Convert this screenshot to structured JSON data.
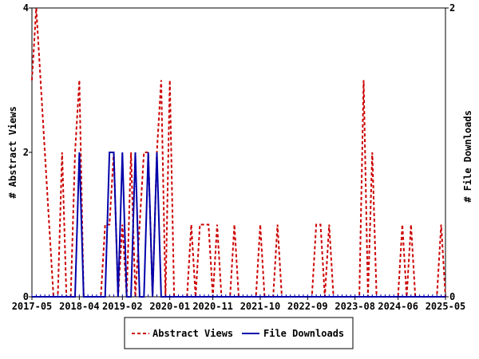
{
  "chart_data": {
    "type": "line",
    "ylabel_left": "# Abstract Views",
    "ylabel_right": "# File Downloads",
    "ylim_left": [
      0,
      4
    ],
    "ylim_right": [
      0,
      2
    ],
    "yticks_left": [
      "0",
      "2",
      "4"
    ],
    "yticks_right": [
      "0",
      "2"
    ],
    "x_range": [
      "2017-05",
      "2025-05"
    ],
    "xticks": [
      "2017-05",
      "2018-04",
      "2019-02",
      "2020-01",
      "2020-11",
      "2021-10",
      "2022-09",
      "2023-08",
      "2024-06",
      "2025-05"
    ],
    "legend_position": "bottom",
    "grid": false,
    "series": [
      {
        "name": "Abstract Views",
        "axis": "left",
        "color": "#cc0000",
        "style": "dashed",
        "points": [
          [
            "2017-05",
            3
          ],
          [
            "2017-06",
            4
          ],
          [
            "2017-07",
            3
          ],
          [
            "2017-08",
            2
          ],
          [
            "2017-09",
            1
          ],
          [
            "2017-10",
            0
          ],
          [
            "2017-11",
            0
          ],
          [
            "2017-12",
            2
          ],
          [
            "2018-01",
            0
          ],
          [
            "2018-02",
            0
          ],
          [
            "2018-03",
            2
          ],
          [
            "2018-04",
            3
          ],
          [
            "2018-05",
            0
          ],
          [
            "2018-06",
            0
          ],
          [
            "2018-07",
            0
          ],
          [
            "2018-08",
            0
          ],
          [
            "2018-09",
            0
          ],
          [
            "2018-10",
            1
          ],
          [
            "2018-11",
            1
          ],
          [
            "2018-12",
            2
          ],
          [
            "2019-01",
            0
          ],
          [
            "2019-02",
            1
          ],
          [
            "2019-03",
            0
          ],
          [
            "2019-04",
            2
          ],
          [
            "2019-05",
            0
          ],
          [
            "2019-06",
            1
          ],
          [
            "2019-07",
            2
          ],
          [
            "2019-08",
            2
          ],
          [
            "2019-09",
            0
          ],
          [
            "2019-10",
            2
          ],
          [
            "2019-11",
            3
          ],
          [
            "2019-12",
            0
          ],
          [
            "2020-01",
            3
          ],
          [
            "2020-02",
            0
          ],
          [
            "2020-03",
            0
          ],
          [
            "2020-04",
            0
          ],
          [
            "2020-05",
            0
          ],
          [
            "2020-06",
            1
          ],
          [
            "2020-07",
            0
          ],
          [
            "2020-08",
            1
          ],
          [
            "2020-09",
            1
          ],
          [
            "2020-10",
            1
          ],
          [
            "2020-11",
            0
          ],
          [
            "2020-12",
            1
          ],
          [
            "2021-01",
            0
          ],
          [
            "2021-02",
            0
          ],
          [
            "2021-03",
            0
          ],
          [
            "2021-04",
            1
          ],
          [
            "2021-05",
            0
          ],
          [
            "2021-06",
            0
          ],
          [
            "2021-07",
            0
          ],
          [
            "2021-08",
            0
          ],
          [
            "2021-09",
            0
          ],
          [
            "2021-10",
            1
          ],
          [
            "2021-11",
            0
          ],
          [
            "2021-12",
            0
          ],
          [
            "2022-01",
            0
          ],
          [
            "2022-02",
            1
          ],
          [
            "2022-03",
            0
          ],
          [
            "2022-04",
            0
          ],
          [
            "2022-05",
            0
          ],
          [
            "2022-06",
            0
          ],
          [
            "2022-07",
            0
          ],
          [
            "2022-08",
            0
          ],
          [
            "2022-09",
            0
          ],
          [
            "2022-10",
            0
          ],
          [
            "2022-11",
            1
          ],
          [
            "2022-12",
            1
          ],
          [
            "2023-01",
            0
          ],
          [
            "2023-02",
            1
          ],
          [
            "2023-03",
            0
          ],
          [
            "2023-04",
            0
          ],
          [
            "2023-05",
            0
          ],
          [
            "2023-06",
            0
          ],
          [
            "2023-07",
            0
          ],
          [
            "2023-08",
            0
          ],
          [
            "2023-09",
            0
          ],
          [
            "2023-10",
            3
          ],
          [
            "2023-11",
            0
          ],
          [
            "2023-12",
            2
          ],
          [
            "2024-01",
            0
          ],
          [
            "2024-02",
            0
          ],
          [
            "2024-03",
            0
          ],
          [
            "2024-04",
            0
          ],
          [
            "2024-05",
            0
          ],
          [
            "2024-06",
            0
          ],
          [
            "2024-07",
            1
          ],
          [
            "2024-08",
            0
          ],
          [
            "2024-09",
            1
          ],
          [
            "2024-10",
            0
          ],
          [
            "2024-11",
            0
          ],
          [
            "2024-12",
            0
          ],
          [
            "2025-01",
            0
          ],
          [
            "2025-02",
            0
          ],
          [
            "2025-03",
            0
          ],
          [
            "2025-04",
            1
          ],
          [
            "2025-05",
            0
          ]
        ]
      },
      {
        "name": "File Downloads",
        "axis": "right",
        "color": "#0000aa",
        "style": "solid",
        "points": [
          [
            "2017-05",
            0
          ],
          [
            "2017-06",
            0
          ],
          [
            "2017-07",
            0
          ],
          [
            "2017-08",
            0
          ],
          [
            "2017-09",
            0
          ],
          [
            "2017-10",
            0
          ],
          [
            "2017-11",
            0
          ],
          [
            "2017-12",
            0
          ],
          [
            "2018-01",
            0
          ],
          [
            "2018-02",
            0
          ],
          [
            "2018-03",
            0
          ],
          [
            "2018-04",
            1
          ],
          [
            "2018-05",
            0
          ],
          [
            "2018-06",
            0
          ],
          [
            "2018-07",
            0
          ],
          [
            "2018-08",
            0
          ],
          [
            "2018-09",
            0
          ],
          [
            "2018-10",
            0
          ],
          [
            "2018-11",
            1
          ],
          [
            "2018-12",
            1
          ],
          [
            "2019-01",
            0
          ],
          [
            "2019-02",
            1
          ],
          [
            "2019-03",
            0
          ],
          [
            "2019-04",
            0
          ],
          [
            "2019-05",
            1
          ],
          [
            "2019-06",
            0
          ],
          [
            "2019-07",
            0
          ],
          [
            "2019-08",
            1
          ],
          [
            "2019-09",
            0
          ],
          [
            "2019-10",
            1
          ],
          [
            "2019-11",
            0
          ],
          [
            "2019-12",
            0
          ],
          [
            "2020-01",
            0
          ],
          [
            "2020-02",
            0
          ],
          [
            "2020-03",
            0
          ],
          [
            "2020-04",
            0
          ],
          [
            "2020-05",
            0
          ],
          [
            "2020-06",
            0
          ],
          [
            "2020-07",
            0
          ],
          [
            "2020-08",
            0
          ],
          [
            "2020-09",
            0
          ],
          [
            "2020-10",
            0
          ],
          [
            "2020-11",
            0
          ],
          [
            "2020-12",
            0
          ],
          [
            "2021-01",
            0
          ],
          [
            "2021-02",
            0
          ],
          [
            "2021-03",
            0
          ],
          [
            "2021-04",
            0
          ],
          [
            "2021-05",
            0
          ],
          [
            "2021-06",
            0
          ],
          [
            "2021-07",
            0
          ],
          [
            "2021-08",
            0
          ],
          [
            "2021-09",
            0
          ],
          [
            "2021-10",
            0
          ],
          [
            "2021-11",
            0
          ],
          [
            "2021-12",
            0
          ],
          [
            "2022-01",
            0
          ],
          [
            "2022-02",
            0
          ],
          [
            "2022-03",
            0
          ],
          [
            "2022-04",
            0
          ],
          [
            "2022-05",
            0
          ],
          [
            "2022-06",
            0
          ],
          [
            "2022-07",
            0
          ],
          [
            "2022-08",
            0
          ],
          [
            "2022-09",
            0
          ],
          [
            "2022-10",
            0
          ],
          [
            "2022-11",
            0
          ],
          [
            "2022-12",
            0
          ],
          [
            "2023-01",
            0
          ],
          [
            "2023-02",
            0
          ],
          [
            "2023-03",
            0
          ],
          [
            "2023-04",
            0
          ],
          [
            "2023-05",
            0
          ],
          [
            "2023-06",
            0
          ],
          [
            "2023-07",
            0
          ],
          [
            "2023-08",
            0
          ],
          [
            "2023-09",
            0
          ],
          [
            "2023-10",
            0
          ],
          [
            "2023-11",
            0
          ],
          [
            "2023-12",
            0
          ],
          [
            "2024-01",
            0
          ],
          [
            "2024-02",
            0
          ],
          [
            "2024-03",
            0
          ],
          [
            "2024-04",
            0
          ],
          [
            "2024-05",
            0
          ],
          [
            "2024-06",
            0
          ],
          [
            "2024-07",
            0
          ],
          [
            "2024-08",
            0
          ],
          [
            "2024-09",
            0
          ],
          [
            "2024-10",
            0
          ],
          [
            "2024-11",
            0
          ],
          [
            "2024-12",
            0
          ],
          [
            "2025-01",
            0
          ],
          [
            "2025-02",
            0
          ],
          [
            "2025-03",
            0
          ],
          [
            "2025-04",
            0
          ],
          [
            "2025-05",
            0
          ]
        ]
      }
    ]
  }
}
